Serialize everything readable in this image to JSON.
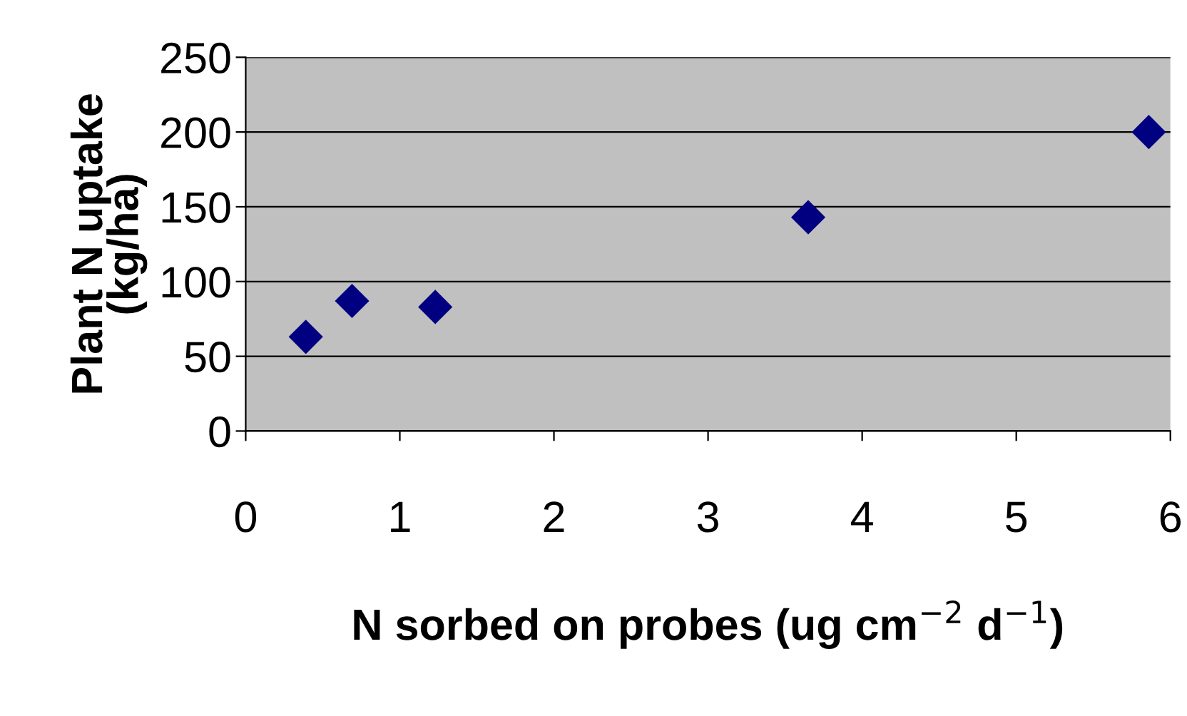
{
  "chart_data": {
    "type": "scatter",
    "xlabel": "N sorbed on probes (ug cm$^{−2}$ d$^{−1}$)",
    "ylabel": "Plant N uptake\n(kg/ha)",
    "x": [
      0.39,
      0.69,
      1.23,
      3.65,
      5.86
    ],
    "series": [
      {
        "color": "#000080",
        "values": [
          63,
          87,
          83,
          143,
          200
        ]
      }
    ],
    "marker": "diamond",
    "xlim": [
      0,
      6
    ],
    "xticks": [
      0,
      1,
      2,
      3,
      4,
      5,
      6
    ],
    "ylim": [
      0,
      250
    ],
    "yticks": [
      0,
      50,
      100,
      150,
      200,
      250
    ],
    "grid": "y",
    "legend": false
  }
}
